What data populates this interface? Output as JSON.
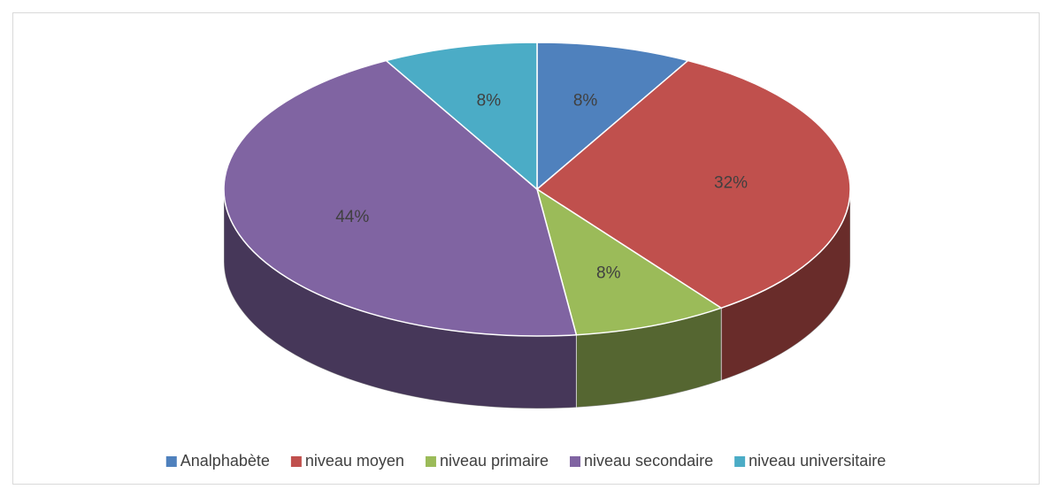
{
  "chart_data": {
    "type": "pie",
    "categories": [
      "Analphabète",
      "niveau moyen",
      "niveau primaire",
      "niveau secondaire",
      "niveau universitaire"
    ],
    "values": [
      8,
      32,
      8,
      44,
      8
    ],
    "value_labels": [
      "8%",
      "32%",
      "8%",
      "44%",
      "8%"
    ],
    "colors": [
      "#4f81bd",
      "#c0504d",
      "#9bbb59",
      "#8064a2",
      "#4bacc6"
    ],
    "legend": "bottom"
  }
}
